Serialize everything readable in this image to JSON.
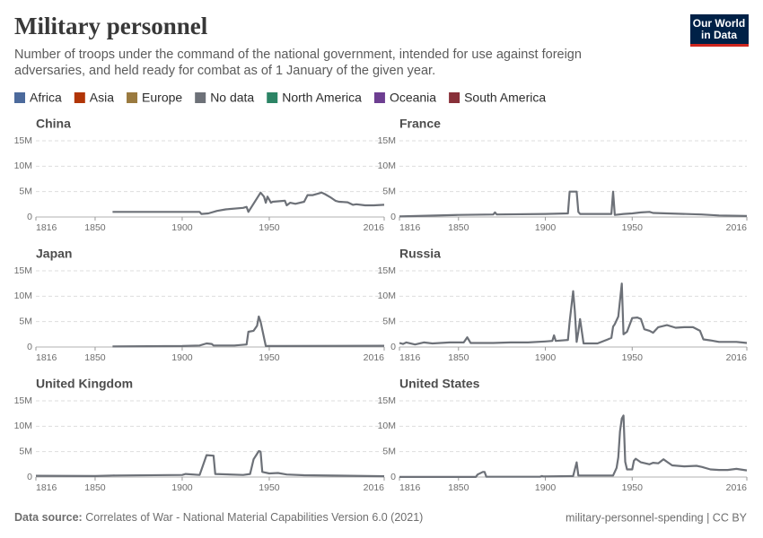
{
  "title": "Military personnel",
  "subtitle": [
    "Number of troops under the command of the national government, intended for use against foreign",
    "adversaries, and held ready for combat as of 1 January of the given year."
  ],
  "logo": [
    "Our World",
    "in Data"
  ],
  "legend": [
    {
      "name": "Africa",
      "color": "#4c6a9c"
    },
    {
      "name": "Asia",
      "color": "#b13507"
    },
    {
      "name": "Europe",
      "color": "#9a7a3f"
    },
    {
      "name": "No data",
      "color": "#6d7178"
    },
    {
      "name": "North America",
      "color": "#2c8465"
    },
    {
      "name": "Oceania",
      "color": "#6d3e91"
    },
    {
      "name": "South America",
      "color": "#883039"
    }
  ],
  "footer": {
    "source_label": "Data source:",
    "source": "Correlates of War - National Material Capabilities Version 6.0 (2021)",
    "slug": "military-personnel-spending | CC BY"
  },
  "chart_data": [
    {
      "type": "line",
      "title": "China",
      "color": "#6d7178",
      "grid": true,
      "xlim": [
        1816,
        2016
      ],
      "xticks": [
        1816,
        1850,
        1900,
        1950,
        2016
      ],
      "ylim": [
        0,
        15000000
      ],
      "yticks": [
        0,
        {
          "value": 5000000,
          "label": "5M"
        },
        {
          "value": 10000000,
          "label": "10M"
        },
        {
          "value": 15000000,
          "label": "15M"
        }
      ],
      "x": [
        1860,
        1910,
        1911,
        1915,
        1920,
        1925,
        1935,
        1937,
        1938,
        1945,
        1947,
        1948,
        1949,
        1951,
        1952,
        1959,
        1960,
        1962,
        1965,
        1970,
        1972,
        1975,
        1978,
        1980,
        1982,
        1985,
        1988,
        1990,
        1995,
        1998,
        2000,
        2005,
        2010,
        2016
      ],
      "values": [
        1000000,
        1000000,
        600000,
        700000,
        1200000,
        1500000,
        1800000,
        2000000,
        1000000,
        4800000,
        4000000,
        2800000,
        4000000,
        2800000,
        3000000,
        3200000,
        2300000,
        2800000,
        2600000,
        3000000,
        4300000,
        4300000,
        4600000,
        4800000,
        4500000,
        3900000,
        3200000,
        3000000,
        2900000,
        2400000,
        2500000,
        2300000,
        2300000,
        2400000
      ]
    },
    {
      "type": "line",
      "title": "France",
      "color": "#6d7178",
      "grid": true,
      "xlim": [
        1816,
        2016
      ],
      "xticks": [
        1816,
        1850,
        1900,
        1950,
        2016
      ],
      "ylim": [
        0,
        15000000
      ],
      "yticks": [
        0,
        {
          "value": 5000000,
          "label": "5M"
        },
        {
          "value": 10000000,
          "label": "10M"
        },
        {
          "value": 15000000,
          "label": "15M"
        }
      ],
      "x": [
        1816,
        1850,
        1870,
        1871,
        1872,
        1900,
        1913,
        1914,
        1918,
        1919,
        1920,
        1938,
        1939,
        1940,
        1945,
        1950,
        1955,
        1960,
        1962,
        1990,
        2000,
        2016
      ],
      "values": [
        100000,
        400000,
        500000,
        900000,
        500000,
        600000,
        700000,
        5000000,
        5000000,
        1000000,
        600000,
        600000,
        5000000,
        400000,
        600000,
        700000,
        900000,
        1000000,
        800000,
        500000,
        300000,
        200000
      ]
    },
    {
      "type": "line",
      "title": "Japan",
      "color": "#6d7178",
      "grid": true,
      "xlim": [
        1816,
        2016
      ],
      "xticks": [
        1816,
        1850,
        1900,
        1950,
        2016
      ],
      "ylim": [
        0,
        15000000
      ],
      "yticks": [
        0,
        {
          "value": 5000000,
          "label": "5M"
        },
        {
          "value": 10000000,
          "label": "10M"
        },
        {
          "value": 15000000,
          "label": "15M"
        }
      ],
      "x": [
        1860,
        1900,
        1910,
        1914,
        1917,
        1918,
        1930,
        1937,
        1938,
        1941,
        1943,
        1944,
        1945,
        1948,
        1955,
        2016
      ],
      "values": [
        100000,
        200000,
        300000,
        700000,
        600000,
        300000,
        300000,
        500000,
        3000000,
        3200000,
        4200000,
        6000000,
        5000000,
        200000,
        200000,
        250000
      ]
    },
    {
      "type": "line",
      "title": "Russia",
      "color": "#6d7178",
      "grid": true,
      "xlim": [
        1816,
        2016
      ],
      "xticks": [
        1816,
        1850,
        1900,
        1950,
        2016
      ],
      "ylim": [
        0,
        15000000
      ],
      "yticks": [
        0,
        {
          "value": 5000000,
          "label": "5M"
        },
        {
          "value": 10000000,
          "label": "10M"
        },
        {
          "value": 15000000,
          "label": "15M"
        }
      ],
      "x": [
        1816,
        1818,
        1820,
        1825,
        1830,
        1835,
        1845,
        1853,
        1855,
        1857,
        1870,
        1880,
        1890,
        1900,
        1904,
        1905,
        1906,
        1913,
        1914,
        1916,
        1917,
        1918,
        1919,
        1920,
        1922,
        1930,
        1936,
        1938,
        1939,
        1940,
        1942,
        1944,
        1945,
        1947,
        1950,
        1953,
        1955,
        1957,
        1960,
        1962,
        1965,
        1970,
        1975,
        1980,
        1985,
        1989,
        1991,
        1995,
        2000,
        2010,
        2013,
        2016
      ],
      "values": [
        800000,
        600000,
        900000,
        500000,
        900000,
        700000,
        900000,
        900000,
        1900000,
        800000,
        800000,
        900000,
        900000,
        1100000,
        1200000,
        2300000,
        1200000,
        1400000,
        5000000,
        11000000,
        7000000,
        1000000,
        3000000,
        5500000,
        700000,
        700000,
        1500000,
        1800000,
        4000000,
        4500000,
        6000000,
        12500000,
        2500000,
        3000000,
        5700000,
        5800000,
        5500000,
        3500000,
        3200000,
        2800000,
        3900000,
        4300000,
        3800000,
        3900000,
        3900000,
        3200000,
        1500000,
        1300000,
        1000000,
        1000000,
        900000,
        800000
      ]
    },
    {
      "type": "line",
      "title": "United Kingdom",
      "color": "#6d7178",
      "grid": true,
      "xlim": [
        1816,
        2016
      ],
      "xticks": [
        1816,
        1850,
        1900,
        1950,
        2016
      ],
      "ylim": [
        0,
        15000000
      ],
      "yticks": [
        0,
        {
          "value": 5000000,
          "label": "5M"
        },
        {
          "value": 10000000,
          "label": "10M"
        },
        {
          "value": 15000000,
          "label": "15M"
        }
      ],
      "x": [
        1816,
        1850,
        1860,
        1900,
        1902,
        1910,
        1914,
        1918,
        1919,
        1935,
        1939,
        1941,
        1944,
        1945,
        1946,
        1950,
        1955,
        1960,
        1970,
        2016
      ],
      "values": [
        250000,
        200000,
        300000,
        400000,
        600000,
        400000,
        4300000,
        4200000,
        600000,
        400000,
        600000,
        3500000,
        5100000,
        5000000,
        1000000,
        700000,
        800000,
        500000,
        350000,
        150000
      ]
    },
    {
      "type": "line",
      "title": "United States",
      "color": "#6d7178",
      "grid": true,
      "xlim": [
        1816,
        2016
      ],
      "xticks": [
        1816,
        1850,
        1900,
        1950,
        2016
      ],
      "ylim": [
        0,
        15000000
      ],
      "yticks": [
        0,
        {
          "value": 5000000,
          "label": "5M"
        },
        {
          "value": 10000000,
          "label": "10M"
        },
        {
          "value": 15000000,
          "label": "15M"
        }
      ],
      "x": [
        1816,
        1860,
        1861,
        1864,
        1865,
        1866,
        1897,
        1898,
        1899,
        1916,
        1918,
        1919,
        1939,
        1941,
        1942,
        1943,
        1944,
        1945,
        1946,
        1947,
        1950,
        1951,
        1952,
        1955,
        1960,
        1962,
        1965,
        1968,
        1970,
        1973,
        1980,
        1987,
        1990,
        1995,
        2000,
        2005,
        2010,
        2016
      ],
      "values": [
        20000,
        20000,
        500000,
        1000000,
        1000000,
        50000,
        50000,
        200000,
        100000,
        200000,
        2900000,
        300000,
        300000,
        1800000,
        3900000,
        9000000,
        11500000,
        12100000,
        3000000,
        1500000,
        1500000,
        3200000,
        3600000,
        2900000,
        2500000,
        2800000,
        2700000,
        3500000,
        3000000,
        2300000,
        2100000,
        2200000,
        2000000,
        1500000,
        1400000,
        1400000,
        1600000,
        1300000
      ]
    }
  ]
}
